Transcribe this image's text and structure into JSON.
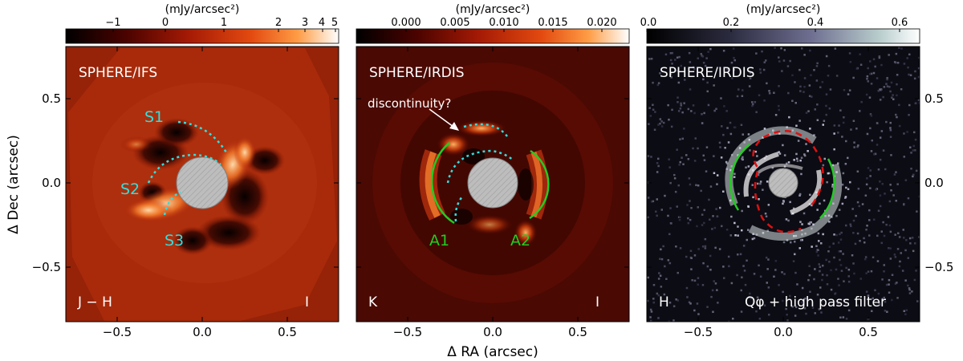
{
  "figure": {
    "xlabel": "Δ RA (arcsec)",
    "ylabel": "Δ Dec (arcsec)",
    "x_ticks": [
      "−0.5",
      "0.0",
      "0.5"
    ],
    "y_ticks": [
      "0.5",
      "0.0",
      "−0.5"
    ],
    "panels": [
      {
        "instrument": "SPHERE/IFS",
        "band": "J − H",
        "scale_marker": "I",
        "colorbar_unit": "(mJy/arcsec²)",
        "colorbar_ticks": [
          "−1",
          "0",
          "1",
          "2",
          "3",
          "4",
          "5"
        ],
        "colormap": [
          "#000000",
          "#5a0500",
          "#b01e05",
          "#e84a10",
          "#ff9a40",
          "#ffd7a0",
          "#ffffff"
        ],
        "annotations": [
          "S1",
          "S2",
          "S3"
        ],
        "annotation_color": "#33dddd"
      },
      {
        "instrument": "SPHERE/IRDIS",
        "band": "K",
        "scale_marker": "I",
        "colorbar_unit": "(mJy/arcsec²)",
        "colorbar_ticks": [
          "0.000",
          "0.005",
          "0.010",
          "0.015",
          "0.020"
        ],
        "colormap": [
          "#000000",
          "#5a0500",
          "#b01e05",
          "#e84a10",
          "#ff9a40",
          "#ffd7a0",
          "#ffffff"
        ],
        "arrow_label": "discontinuity?",
        "annotations": [
          "A1",
          "A2"
        ],
        "annotation_color": "#22cc22"
      },
      {
        "instrument": "SPHERE/IRDIS",
        "band": "H",
        "filter_label": "Qφ + high pass filter",
        "colorbar_unit": "(mJy/arcsec²)",
        "colorbar_ticks": [
          "0.0",
          "0.2",
          "0.4",
          "0.6"
        ],
        "colormap": [
          "#000000",
          "#1c1c2a",
          "#464663",
          "#8a8aa8",
          "#c6d6d6",
          "#ffffff"
        ]
      }
    ]
  }
}
